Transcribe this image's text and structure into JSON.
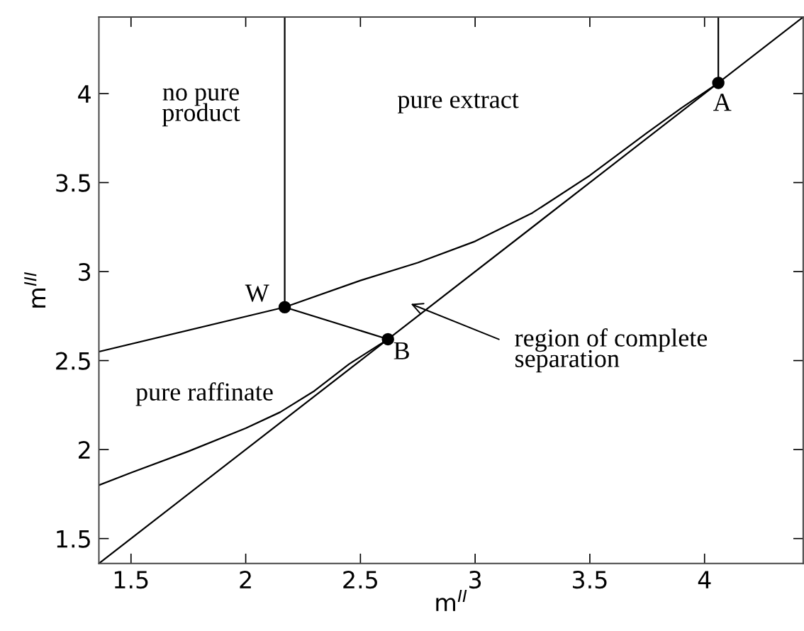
{
  "chart_data": {
    "type": "line",
    "xlabel": "m$^{II}$",
    "ylabel": "m$^{III}$",
    "xlim": [
      1.36,
      4.43
    ],
    "ylim": [
      1.36,
      4.43
    ],
    "xticks": [
      1.5,
      2,
      2.5,
      3,
      3.5,
      4
    ],
    "yticks": [
      1.5,
      2,
      2.5,
      3,
      3.5,
      4
    ],
    "grid": false,
    "legend": false,
    "marker": "none",
    "line_style": "solid",
    "series": [
      {
        "color": "#000000",
        "x": [
          1.36,
          4.43
        ],
        "values": [
          1.36,
          4.43
        ]
      },
      {
        "color": "#000000",
        "x": [
          1.36,
          2.17,
          2.5,
          2.75,
          3,
          3.25,
          3.5,
          3.75,
          3.9,
          4.06
        ],
        "values": [
          2.55,
          2.8,
          2.95,
          3.05,
          3.17,
          3.33,
          3.54,
          3.78,
          3.92,
          4.06
        ]
      },
      {
        "color": "#000000",
        "x": [
          1.36,
          1.5,
          1.75,
          2,
          2.15,
          2.3,
          2.45,
          2.62
        ],
        "values": [
          1.8,
          1.87,
          1.99,
          2.12,
          2.21,
          2.33,
          2.48,
          2.62
        ]
      },
      {
        "color": "#000000",
        "x": [
          2.17,
          2.62
        ],
        "values": [
          2.8,
          2.62
        ]
      },
      {
        "color": "#000000",
        "x": [
          2.17,
          2.17
        ],
        "values": [
          2.8,
          4.43
        ]
      },
      {
        "color": "#000000",
        "x": [
          4.06,
          4.06
        ],
        "values": [
          4.06,
          4.43
        ]
      },
      {
        "type": "scatter",
        "marker": "circle",
        "color": "#000000",
        "x": [
          2.17,
          2.62,
          4.06
        ],
        "values": [
          2.8,
          2.62,
          4.06
        ]
      }
    ],
    "annotations": [
      "no pure\nproduct",
      "pure extract",
      "pure raffinate",
      {
        "text": "W",
        "x": 2.17,
        "y": 2.8
      },
      {
        "text": "A",
        "x": 4.06,
        "y": 4.06
      },
      {
        "text": "B",
        "x": 2.62,
        "y": 2.62
      },
      "region of complete\nseparation"
    ]
  }
}
